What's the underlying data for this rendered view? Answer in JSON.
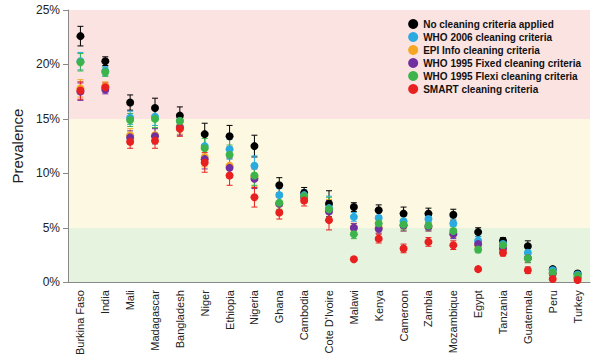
{
  "chart_data": {
    "type": "scatter",
    "y_label": "Prevalence",
    "categories": [
      "Burkina Faso",
      "India",
      "Mali",
      "Madagascar",
      "Bangladesh",
      "Niger",
      "Ethiopia",
      "Nigeria",
      "Ghana",
      "Cambodia",
      "Cote D'Ivoire",
      "Malawi",
      "Kenya",
      "Cameroon",
      "Zambia",
      "Mozambique",
      "Egypt",
      "Tanzania",
      "Guatemala",
      "Peru",
      "Turkey"
    ],
    "series": [
      {
        "name": "No cleaning criteria applied",
        "color": "#000000",
        "values": [
          22.6,
          20.3,
          16.5,
          16.0,
          15.3,
          13.6,
          13.4,
          12.5,
          8.9,
          8.2,
          7.2,
          6.9,
          6.6,
          6.3,
          6.3,
          6.2,
          4.6,
          3.8,
          3.3,
          1.2,
          0.8
        ],
        "errors": [
          0.9,
          0.4,
          0.7,
          0.9,
          0.8,
          1.0,
          1.0,
          1.0,
          0.7,
          0.5,
          1.2,
          0.4,
          0.5,
          0.6,
          0.5,
          0.5,
          0.4,
          0.3,
          0.5,
          0.2,
          0.2
        ]
      },
      {
        "name": "WHO 2006 cleaning criteria",
        "color": "#29abe2",
        "values": [
          20.3,
          19.4,
          15.1,
          15.2,
          14.8,
          12.5,
          12.2,
          10.7,
          8.0,
          8.0,
          6.8,
          6.0,
          5.9,
          5.6,
          5.8,
          5.4,
          3.8,
          3.5,
          2.7,
          1.1,
          0.7
        ],
        "errors": [
          0.8,
          0.4,
          0.6,
          0.8,
          0.7,
          0.9,
          0.9,
          0.9,
          0.6,
          0.5,
          1.1,
          0.4,
          0.5,
          0.5,
          0.5,
          0.5,
          0.4,
          0.3,
          0.4,
          0.2,
          0.2
        ]
      },
      {
        "name": "EPI Info cleaning criteria",
        "color": "#f5a623",
        "values": [
          17.8,
          18.0,
          13.5,
          13.5,
          14.3,
          11.5,
          10.7,
          9.7,
          7.2,
          7.8,
          6.6,
          5.0,
          5.0,
          5.2,
          5.1,
          4.5,
          3.4,
          3.1,
          2.2,
          0.8,
          0.4
        ],
        "errors": [
          0.8,
          0.4,
          0.6,
          0.7,
          0.7,
          0.9,
          0.9,
          0.9,
          0.6,
          0.5,
          1.0,
          0.4,
          0.4,
          0.5,
          0.4,
          0.4,
          0.3,
          0.3,
          0.4,
          0.2,
          0.1
        ]
      },
      {
        "name": "WHO 1995 Fixed cleaning criteria",
        "color": "#7030a0",
        "values": [
          17.5,
          17.7,
          13.3,
          13.4,
          14.2,
          11.3,
          10.5,
          9.5,
          7.2,
          7.8,
          6.5,
          5.0,
          4.9,
          5.2,
          5.1,
          4.4,
          3.5,
          3.1,
          2.2,
          0.8,
          0.4
        ],
        "errors": [
          0.8,
          0.4,
          0.6,
          0.7,
          0.7,
          0.9,
          0.9,
          0.9,
          0.6,
          0.5,
          1.0,
          0.4,
          0.4,
          0.5,
          0.4,
          0.4,
          0.3,
          0.3,
          0.4,
          0.2,
          0.1
        ]
      },
      {
        "name": "WHO 1995 Flexi cleaning criteria",
        "color": "#3cb44b",
        "values": [
          20.2,
          19.3,
          14.9,
          15.0,
          14.8,
          12.3,
          11.7,
          9.8,
          7.3,
          7.9,
          6.7,
          4.4,
          5.4,
          5.3,
          5.2,
          4.7,
          3.0,
          3.4,
          2.2,
          0.9,
          0.6
        ],
        "errors": [
          0.8,
          0.4,
          0.6,
          0.8,
          0.7,
          0.9,
          0.9,
          0.9,
          0.6,
          0.5,
          1.1,
          0.4,
          0.5,
          0.5,
          0.4,
          0.4,
          0.3,
          0.3,
          0.4,
          0.2,
          0.2
        ]
      },
      {
        "name": "SMART cleaning criteria",
        "color": "#e8201f",
        "values": [
          17.6,
          17.9,
          12.9,
          13.0,
          14.1,
          11.0,
          9.8,
          7.8,
          6.4,
          7.5,
          5.7,
          2.1,
          4.0,
          3.1,
          3.7,
          3.4,
          1.2,
          2.7,
          1.1,
          0.3,
          0.2
        ],
        "errors": [
          0.8,
          0.4,
          0.6,
          0.7,
          0.7,
          0.9,
          0.9,
          0.9,
          0.6,
          0.5,
          0.9,
          0.2,
          0.4,
          0.4,
          0.4,
          0.4,
          0.2,
          0.3,
          0.3,
          0.1,
          0.1
        ]
      }
    ],
    "bands": [
      {
        "from": 0,
        "to": 5,
        "color": "#e6f3df"
      },
      {
        "from": 5,
        "to": 15,
        "color": "#fdf8e1"
      },
      {
        "from": 15,
        "to": 25,
        "color": "#fbe3e1"
      }
    ],
    "ylim": [
      0,
      25
    ],
    "yticks": [
      {
        "value": 0,
        "label": "0%"
      },
      {
        "value": 5,
        "label": "5%"
      },
      {
        "value": 10,
        "label": "10%"
      },
      {
        "value": 15,
        "label": "15%"
      },
      {
        "value": 20,
        "label": "20%"
      },
      {
        "value": 25,
        "label": "25%"
      }
    ],
    "grid": true,
    "legend": "top-right",
    "marker": "circle"
  }
}
